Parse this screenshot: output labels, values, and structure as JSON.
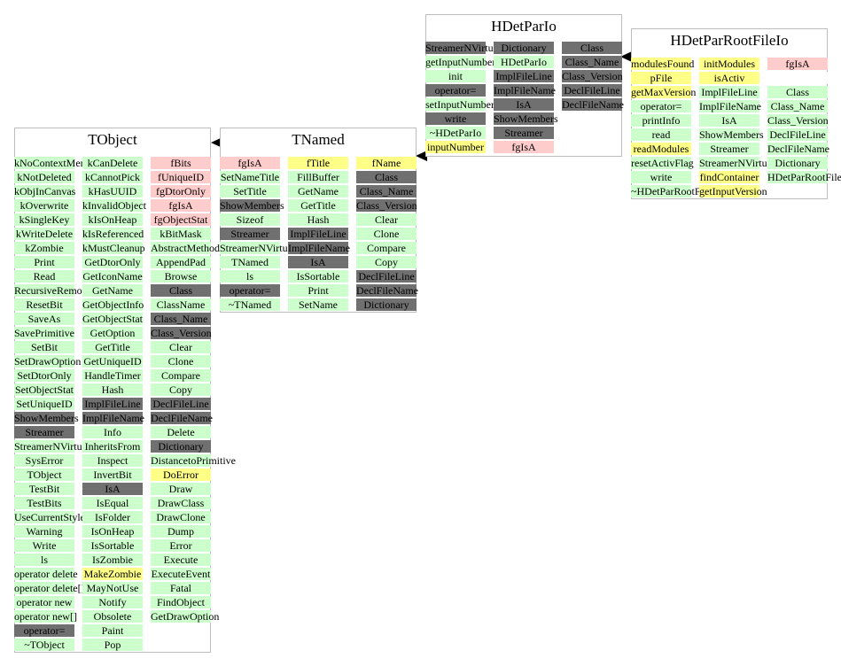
{
  "colors": {
    "green": "#ccffcc",
    "pink": "#ffcccc",
    "yellow": "#ffff88",
    "gray": "#707070"
  },
  "boxes": [
    {
      "name": "TObject",
      "columns": [
        [
          [
            "kNoContextMenu",
            "g"
          ],
          [
            "kNotDeleted",
            "g"
          ],
          [
            "kObjInCanvas",
            "g"
          ],
          [
            "kOverwrite",
            "g"
          ],
          [
            "kSingleKey",
            "g"
          ],
          [
            "kWriteDelete",
            "g"
          ],
          [
            "kZombie",
            "g"
          ],
          [
            "Print",
            "g"
          ],
          [
            "Read",
            "g"
          ],
          [
            "RecursiveRemove",
            "g"
          ],
          [
            "ResetBit",
            "g"
          ],
          [
            "SaveAs",
            "g"
          ],
          [
            "SavePrimitive",
            "g"
          ],
          [
            "SetBit",
            "g"
          ],
          [
            "SetDrawOption",
            "g"
          ],
          [
            "SetDtorOnly",
            "g"
          ],
          [
            "SetObjectStat",
            "g"
          ],
          [
            "SetUniqueID",
            "g"
          ],
          [
            "ShowMembers",
            "d"
          ],
          [
            "Streamer",
            "d"
          ],
          [
            "StreamerNVirtual",
            "g"
          ],
          [
            "SysError",
            "g"
          ],
          [
            "TObject",
            "g"
          ],
          [
            "TestBit",
            "g"
          ],
          [
            "TestBits",
            "g"
          ],
          [
            "UseCurrentStyle",
            "g"
          ],
          [
            "Warning",
            "g"
          ],
          [
            "Write",
            "g"
          ],
          [
            "ls",
            "g"
          ],
          [
            "operator delete",
            "g"
          ],
          [
            "operator delete[]",
            "g"
          ],
          [
            "operator new",
            "g"
          ],
          [
            "operator new[]",
            "g"
          ],
          [
            "operator=",
            "d"
          ],
          [
            "~TObject",
            "g"
          ]
        ],
        [
          [
            "kCanDelete",
            "g"
          ],
          [
            "kCannotPick",
            "g"
          ],
          [
            "kHasUUID",
            "g"
          ],
          [
            "kInvalidObject",
            "g"
          ],
          [
            "kIsOnHeap",
            "g"
          ],
          [
            "kIsReferenced",
            "g"
          ],
          [
            "kMustCleanup",
            "g"
          ],
          [
            "GetDtorOnly",
            "g"
          ],
          [
            "GetIconName",
            "g"
          ],
          [
            "GetName",
            "g"
          ],
          [
            "GetObjectInfo",
            "g"
          ],
          [
            "GetObjectStat",
            "g"
          ],
          [
            "GetOption",
            "g"
          ],
          [
            "GetTitle",
            "g"
          ],
          [
            "GetUniqueID",
            "g"
          ],
          [
            "HandleTimer",
            "g"
          ],
          [
            "Hash",
            "g"
          ],
          [
            "ImplFileLine",
            "d"
          ],
          [
            "ImplFileName",
            "d"
          ],
          [
            "Info",
            "g"
          ],
          [
            "InheritsFrom",
            "g"
          ],
          [
            "Inspect",
            "g"
          ],
          [
            "InvertBit",
            "g"
          ],
          [
            "IsA",
            "d"
          ],
          [
            "IsEqual",
            "g"
          ],
          [
            "IsFolder",
            "g"
          ],
          [
            "IsOnHeap",
            "g"
          ],
          [
            "IsSortable",
            "g"
          ],
          [
            "IsZombie",
            "g"
          ],
          [
            "MakeZombie",
            "y"
          ],
          [
            "MayNotUse",
            "g"
          ],
          [
            "Notify",
            "g"
          ],
          [
            "Obsolete",
            "g"
          ],
          [
            "Paint",
            "g"
          ],
          [
            "Pop",
            "g"
          ]
        ],
        [
          [
            "fBits",
            "p"
          ],
          [
            "fUniqueID",
            "p"
          ],
          [
            "fgDtorOnly",
            "p"
          ],
          [
            "fgIsA",
            "p"
          ],
          [
            "fgObjectStat",
            "p"
          ],
          [
            "kBitMask",
            "g"
          ],
          [
            "AbstractMethod",
            "g"
          ],
          [
            "AppendPad",
            "g"
          ],
          [
            "Browse",
            "g"
          ],
          [
            "Class",
            "d"
          ],
          [
            "ClassName",
            "g"
          ],
          [
            "Class_Name",
            "d"
          ],
          [
            "Class_Version",
            "d"
          ],
          [
            "Clear",
            "g"
          ],
          [
            "Clone",
            "g"
          ],
          [
            "Compare",
            "g"
          ],
          [
            "Copy",
            "g"
          ],
          [
            "DeclFileLine",
            "d"
          ],
          [
            "DeclFileName",
            "d"
          ],
          [
            "Delete",
            "g"
          ],
          [
            "Dictionary",
            "d"
          ],
          [
            "DistancetoPrimitive",
            "g"
          ],
          [
            "DoError",
            "y"
          ],
          [
            "Draw",
            "g"
          ],
          [
            "DrawClass",
            "g"
          ],
          [
            "DrawClone",
            "g"
          ],
          [
            "Dump",
            "g"
          ],
          [
            "Error",
            "g"
          ],
          [
            "Execute",
            "g"
          ],
          [
            "ExecuteEvent",
            "g"
          ],
          [
            "Fatal",
            "g"
          ],
          [
            "FindObject",
            "g"
          ],
          [
            "GetDrawOption",
            "g"
          ]
        ]
      ]
    },
    {
      "name": "TNamed",
      "columns": [
        [
          [
            "fgIsA",
            "p"
          ],
          [
            "SetNameTitle",
            "g"
          ],
          [
            "SetTitle",
            "g"
          ],
          [
            "ShowMembers",
            "d"
          ],
          [
            "Sizeof",
            "g"
          ],
          [
            "Streamer",
            "d"
          ],
          [
            "StreamerNVirtual",
            "g"
          ],
          [
            "TNamed",
            "g"
          ],
          [
            "ls",
            "g"
          ],
          [
            "operator=",
            "d"
          ],
          [
            "~TNamed",
            "g"
          ]
        ],
        [
          [
            "fTitle",
            "y"
          ],
          [
            "FillBuffer",
            "g"
          ],
          [
            "GetName",
            "g"
          ],
          [
            "GetTitle",
            "g"
          ],
          [
            "Hash",
            "g"
          ],
          [
            "ImplFileLine",
            "d"
          ],
          [
            "ImplFileName",
            "d"
          ],
          [
            "IsA",
            "d"
          ],
          [
            "IsSortable",
            "g"
          ],
          [
            "Print",
            "g"
          ],
          [
            "SetName",
            "g"
          ]
        ],
        [
          [
            "fName",
            "y"
          ],
          [
            "Class",
            "d"
          ],
          [
            "Class_Name",
            "d"
          ],
          [
            "Class_Version",
            "d"
          ],
          [
            "Clear",
            "g"
          ],
          [
            "Clone",
            "g"
          ],
          [
            "Compare",
            "g"
          ],
          [
            "Copy",
            "g"
          ],
          [
            "DeclFileLine",
            "d"
          ],
          [
            "DeclFileName",
            "d"
          ],
          [
            "Dictionary",
            "d"
          ]
        ]
      ]
    },
    {
      "name": "HDetParIo",
      "columns": [
        [
          [
            "StreamerNVirtual",
            "d"
          ],
          [
            "getInputNumber",
            "g"
          ],
          [
            "init",
            "g"
          ],
          [
            "operator=",
            "d"
          ],
          [
            "setInputNumber",
            "g"
          ],
          [
            "write",
            "d"
          ],
          [
            "~HDetParIo",
            "g"
          ],
          [
            "inputNumber",
            "y"
          ]
        ],
        [
          [
            "Dictionary",
            "d"
          ],
          [
            "HDetParIo",
            "g"
          ],
          [
            "ImplFileLine",
            "d"
          ],
          [
            "ImplFileName",
            "d"
          ],
          [
            "IsA",
            "d"
          ],
          [
            "ShowMembers",
            "d"
          ],
          [
            "Streamer",
            "d"
          ],
          [
            "fgIsA",
            "p"
          ]
        ],
        [
          [
            "Class",
            "d"
          ],
          [
            "Class_Name",
            "d"
          ],
          [
            "Class_Version",
            "d"
          ],
          [
            "DeclFileLine",
            "d"
          ],
          [
            "DeclFileName",
            "d"
          ]
        ]
      ]
    },
    {
      "name": "HDetParRootFileIo",
      "columns": [
        [
          [
            "modulesFound",
            "y"
          ],
          [
            "pFile",
            "y"
          ],
          [
            "getMaxVersion",
            "y"
          ],
          [
            "operator=",
            "g"
          ],
          [
            "printInfo",
            "g"
          ],
          [
            "read",
            "g"
          ],
          [
            "readModules",
            "y"
          ],
          [
            "resetActivFlag",
            "g"
          ],
          [
            "write",
            "g"
          ],
          [
            "~HDetParRootFileIo",
            "g"
          ]
        ],
        [
          [
            "initModules",
            "y"
          ],
          [
            "isActiv",
            "y"
          ],
          [
            "ImplFileLine",
            "g"
          ],
          [
            "ImplFileName",
            "g"
          ],
          [
            "IsA",
            "g"
          ],
          [
            "ShowMembers",
            "g"
          ],
          [
            "Streamer",
            "g"
          ],
          [
            "StreamerNVirtual",
            "g"
          ],
          [
            "findContainer",
            "y"
          ],
          [
            "getInputVersion",
            "y"
          ]
        ],
        [
          [
            "fgIsA",
            "p"
          ],
          [
            "",
            "w"
          ],
          [
            "Class",
            "g"
          ],
          [
            "Class_Name",
            "g"
          ],
          [
            "Class_Version",
            "g"
          ],
          [
            "DeclFileLine",
            "g"
          ],
          [
            "DeclFileName",
            "g"
          ],
          [
            "Dictionary",
            "g"
          ],
          [
            "HDetParRootFileIo",
            "g"
          ]
        ]
      ]
    }
  ]
}
